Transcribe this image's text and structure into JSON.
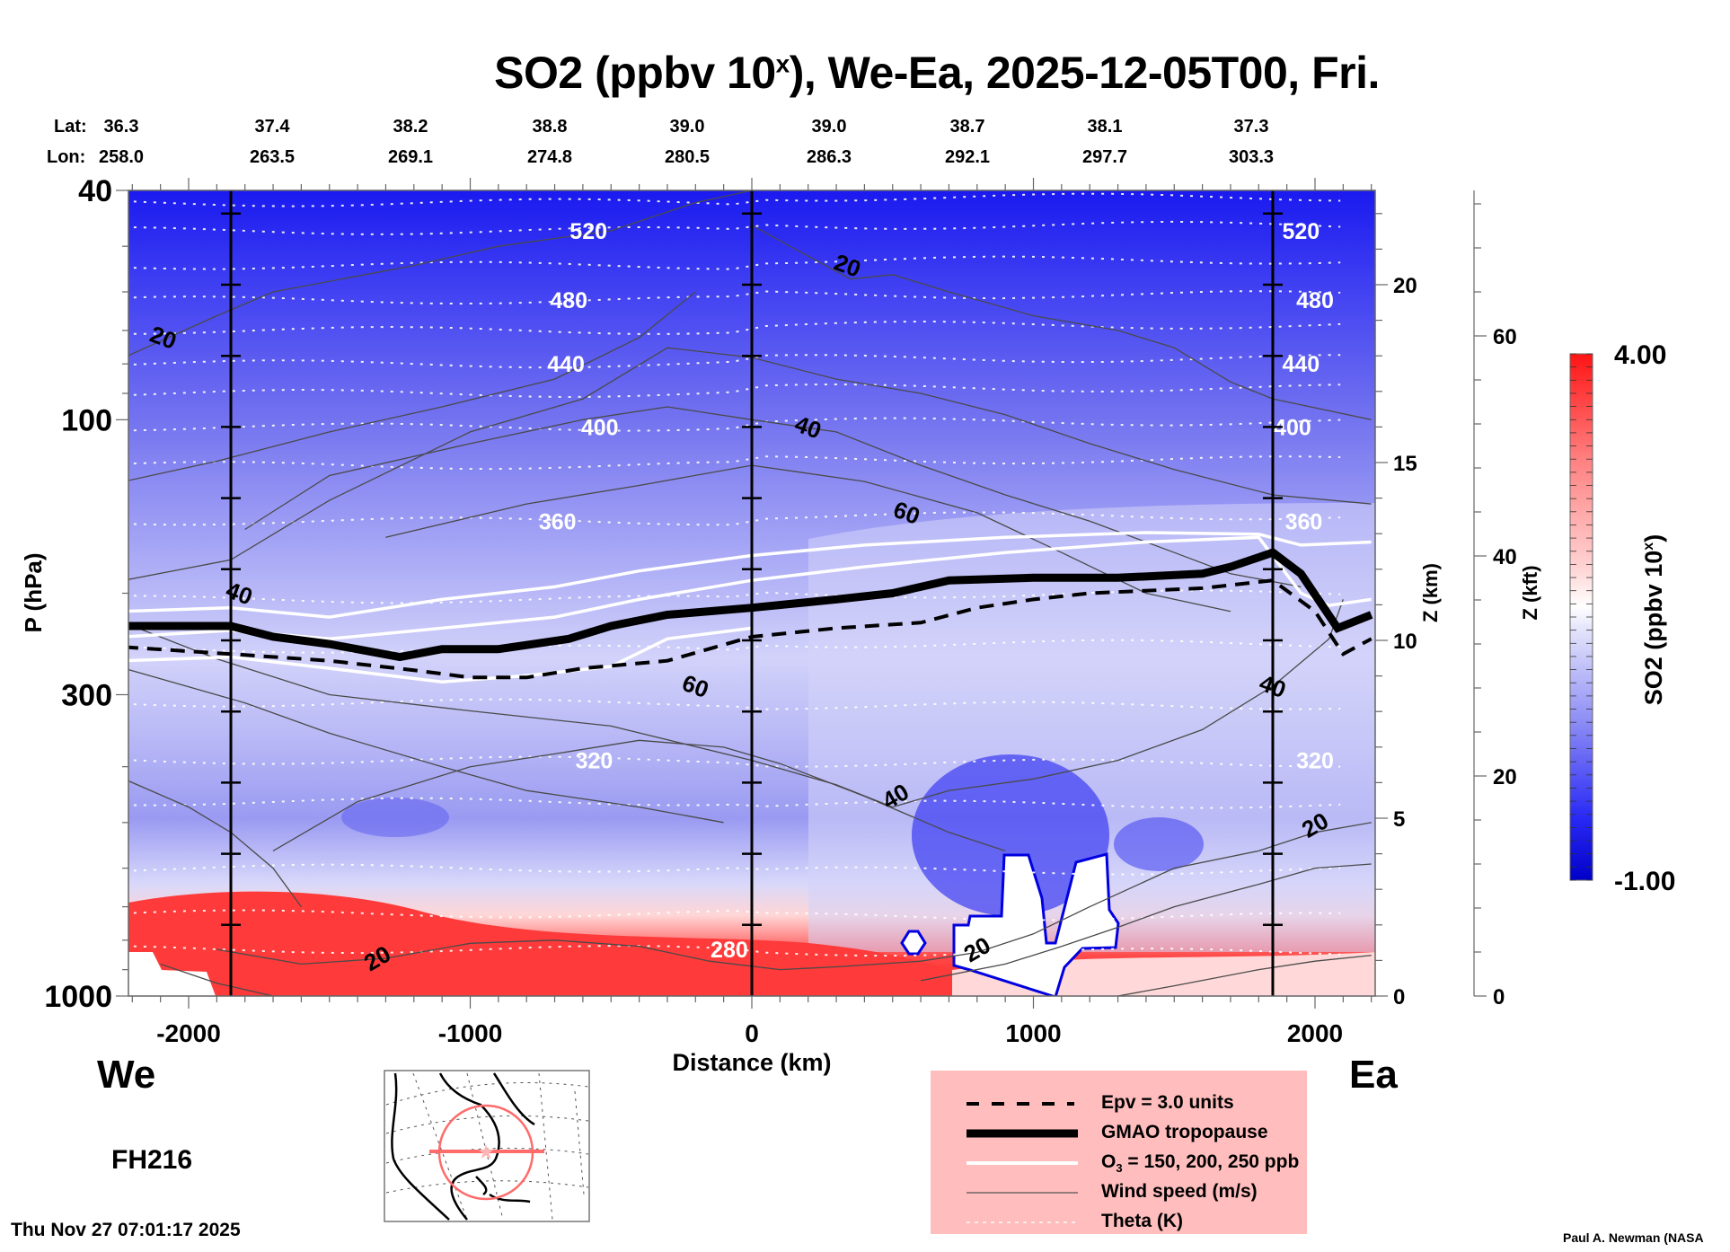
{
  "title": {
    "prefix": "SO2 (ppbv 10",
    "sup": "x",
    "suffix": "), We-Ea, 2025-12-05T00, Fri."
  },
  "header": {
    "lat_label": "Lat:",
    "lon_label": "Lon:",
    "lats": [
      "36.3",
      "37.4",
      "38.2",
      "38.8",
      "39.0",
      "39.0",
      "38.7",
      "38.1",
      "37.3"
    ],
    "lons": [
      "258.0",
      "263.5",
      "269.1",
      "274.8",
      "280.5",
      "286.3",
      "292.1",
      "297.7",
      "303.3"
    ]
  },
  "labels": {
    "west": "We",
    "east": "Ea",
    "forecast_hour": "FH216",
    "timestamp": "Thu Nov 27 07:01:17 2025",
    "credit": "Paul A. Newman (NASA"
  },
  "legend": {
    "items": [
      {
        "text": "Epv = 3.0 units",
        "style": "dashed-black"
      },
      {
        "text": "GMAO tropopause",
        "style": "thick-black"
      },
      {
        "text_main": "O",
        "text_sub": "3",
        "text_rest": " = 150, 200, 250 ppb",
        "style": "white"
      },
      {
        "text": "Wind speed (m/s)",
        "style": "thin-gray"
      },
      {
        "text": "Theta (K)",
        "style": "dotted-white"
      }
    ]
  },
  "colors": {
    "so2_low": "#0000d0",
    "so2_mid": "#ffffff",
    "so2_high": "#ff1010",
    "legend_bg": "#ffbdbd",
    "map_track": "#ff7070"
  },
  "chart_data": {
    "type": "heatmap",
    "title": "SO2 (ppbv 10^x), We-Ea, 2025-12-05T00, Fri.",
    "xlabel": "Distance (km)",
    "ylabel": "P (hPa)",
    "y2label": "Z (km)",
    "y3label": "Z (kft)",
    "colorbar_label": "SO2 (ppbv 10^x)",
    "xlim": [
      -2230,
      2200
    ],
    "ylim": [
      1000,
      40
    ],
    "yscale": "log",
    "x_ticks": [
      -2000,
      -1000,
      0,
      1000,
      2000
    ],
    "x_tick_labels": [
      "-2000",
      "-1000",
      "0",
      "1000",
      "2000"
    ],
    "y_ticks": [
      40,
      100,
      300,
      1000
    ],
    "y_tick_labels": [
      "40",
      "100",
      "300",
      "1000"
    ],
    "z_km_ticks": [
      0,
      5,
      10,
      15,
      20
    ],
    "z_kft_ticks": [
      0,
      20,
      40,
      60
    ],
    "colorbar_range": [
      -1.0,
      4.0
    ],
    "colorbar_tick_labels": [
      "4.00",
      "-1.00"
    ],
    "section_markers_km": [
      -1850,
      0,
      1850
    ],
    "theta_levels": [
      {
        "value": 520,
        "label_positions_km": [
          -580,
          1950
        ]
      },
      {
        "value": 480,
        "label_positions_km": [
          -650,
          2000
        ]
      },
      {
        "value": 440,
        "label_positions_km": [
          -660,
          1950
        ]
      },
      {
        "value": 400,
        "label_positions_km": [
          -540,
          1920
        ]
      },
      {
        "value": 360,
        "label_positions_km": [
          -690,
          1960
        ]
      },
      {
        "value": 320,
        "label_positions_km": [
          -560,
          2000
        ]
      },
      {
        "value": 280,
        "label_positions_km": [
          -80
        ]
      }
    ],
    "wind_labels": [
      {
        "value": 20,
        "x_km": -2090,
        "p": 72
      },
      {
        "value": 20,
        "x_km": 340,
        "p": 54
      },
      {
        "value": 40,
        "x_km": -1820,
        "p": 200
      },
      {
        "value": 40,
        "x_km": 200,
        "p": 103
      },
      {
        "value": 40,
        "x_km": 510,
        "p": 450
      },
      {
        "value": 40,
        "x_km": 1850,
        "p": 290
      },
      {
        "value": 60,
        "x_km": 550,
        "p": 145
      },
      {
        "value": 60,
        "x_km": -200,
        "p": 290
      },
      {
        "value": 20,
        "x_km": -1330,
        "p": 860
      },
      {
        "value": 20,
        "x_km": 800,
        "p": 830
      },
      {
        "value": 20,
        "x_km": 2000,
        "p": 505
      }
    ],
    "tropopause_p": {
      "x_km": [
        -2230,
        -1850,
        -1700,
        -1500,
        -1250,
        -1100,
        -900,
        -650,
        -500,
        -300,
        0,
        300,
        500,
        700,
        1000,
        1300,
        1600,
        1700,
        1850,
        1950,
        2080,
        2200
      ],
      "p": [
        228,
        228,
        238,
        245,
        258,
        250,
        250,
        240,
        228,
        218,
        212,
        205,
        200,
        190,
        188,
        188,
        185,
        180,
        170,
        185,
        230,
        218
      ]
    },
    "epv_p": {
      "x_km": [
        -2230,
        -1850,
        -1500,
        -1200,
        -1000,
        -800,
        -600,
        -300,
        0,
        300,
        600,
        800,
        1000,
        1200,
        1600,
        1850,
        2000,
        2100,
        2200
      ],
      "p": [
        248,
        255,
        262,
        272,
        280,
        280,
        270,
        262,
        238,
        230,
        225,
        212,
        205,
        200,
        196,
        190,
        215,
        255,
        240
      ]
    },
    "ozone_contours_p": [
      {
        "x_km": [
          -2230,
          -1850,
          -1500,
          -1100,
          -700,
          -400,
          0,
          400,
          900,
          1400,
          1800,
          1950,
          2200
        ],
        "p": [
          215,
          212,
          220,
          205,
          195,
          183,
          172,
          165,
          160,
          157,
          158,
          165,
          163
        ]
      },
      {
        "x_km": [
          -2230,
          -1850,
          -1500,
          -1100,
          -700,
          -400,
          0,
          400,
          900,
          1400,
          1800,
          1950,
          2050,
          2200
        ],
        "p": [
          238,
          232,
          240,
          230,
          220,
          205,
          190,
          180,
          170,
          163,
          160,
          200,
          210,
          205
        ]
      },
      {
        "x_km": [
          -2230,
          -1850,
          -1500,
          -1100,
          -800,
          -500,
          -300,
          0
        ],
        "p": [
          262,
          258,
          270,
          285,
          278,
          268,
          240,
          230
        ]
      }
    ]
  }
}
